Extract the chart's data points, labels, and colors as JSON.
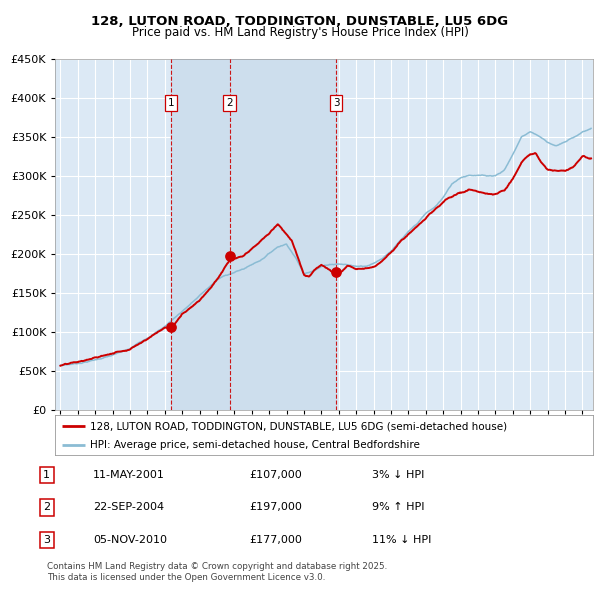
{
  "title1": "128, LUTON ROAD, TODDINGTON, DUNSTABLE, LU5 6DG",
  "title2": "Price paid vs. HM Land Registry's House Price Index (HPI)",
  "legend_property": "128, LUTON ROAD, TODDINGTON, DUNSTABLE, LU5 6DG (semi-detached house)",
  "legend_hpi": "HPI: Average price, semi-detached house, Central Bedfordshire",
  "transactions": [
    {
      "num": 1,
      "date": "11-MAY-2001",
      "price": 107000,
      "pct": "3%",
      "dir": "↓",
      "year": 2001.36
    },
    {
      "num": 2,
      "date": "22-SEP-2004",
      "price": 197000,
      "pct": "9%",
      "dir": "↑",
      "year": 2004.73
    },
    {
      "num": 3,
      "date": "05-NOV-2010",
      "price": 177000,
      "pct": "11%",
      "dir": "↓",
      "year": 2010.84
    }
  ],
  "footnote1": "Contains HM Land Registry data © Crown copyright and database right 2025.",
  "footnote2": "This data is licensed under the Open Government Licence v3.0.",
  "ylim": [
    0,
    450000
  ],
  "yticks": [
    0,
    50000,
    100000,
    150000,
    200000,
    250000,
    300000,
    350000,
    400000,
    450000
  ],
  "plot_bg": "#dce9f5",
  "grid_color": "#ffffff",
  "property_color": "#cc0000",
  "hpi_color": "#8bbcd4",
  "vline_color": "#cc0000",
  "marker_color": "#cc0000",
  "shade_color": "#c5d8ed",
  "xmin": 1994.7,
  "xmax": 2025.6
}
